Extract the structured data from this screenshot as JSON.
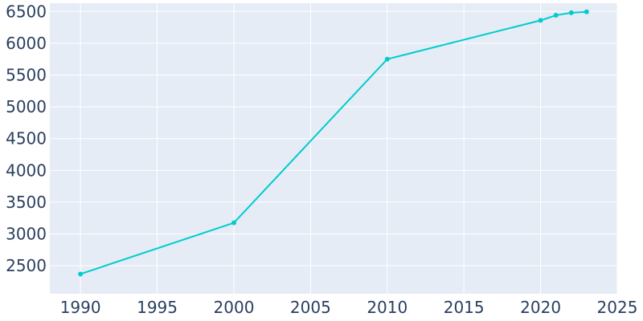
{
  "chart_data": {
    "type": "line",
    "x": [
      1990,
      2000,
      2010,
      2020,
      2021,
      2022,
      2023
    ],
    "series": [
      {
        "values": [
          2370,
          3175,
          5750,
          6360,
          6440,
          6480,
          6495
        ]
      }
    ],
    "xlim": [
      1988,
      2025
    ],
    "ylim": [
      2060,
      6630
    ],
    "xticks": [
      1990,
      1995,
      2000,
      2005,
      2010,
      2015,
      2020,
      2025
    ],
    "yticks": [
      2500,
      3000,
      3500,
      4000,
      4500,
      5000,
      5500,
      6000,
      6500
    ],
    "title": "",
    "xlabel": "",
    "ylabel": "",
    "grid": true,
    "colors": {
      "plot_background": "#e5ecf6",
      "grid": "#ffffff",
      "line": "#00cccc",
      "text": "#2a3f5f"
    }
  }
}
